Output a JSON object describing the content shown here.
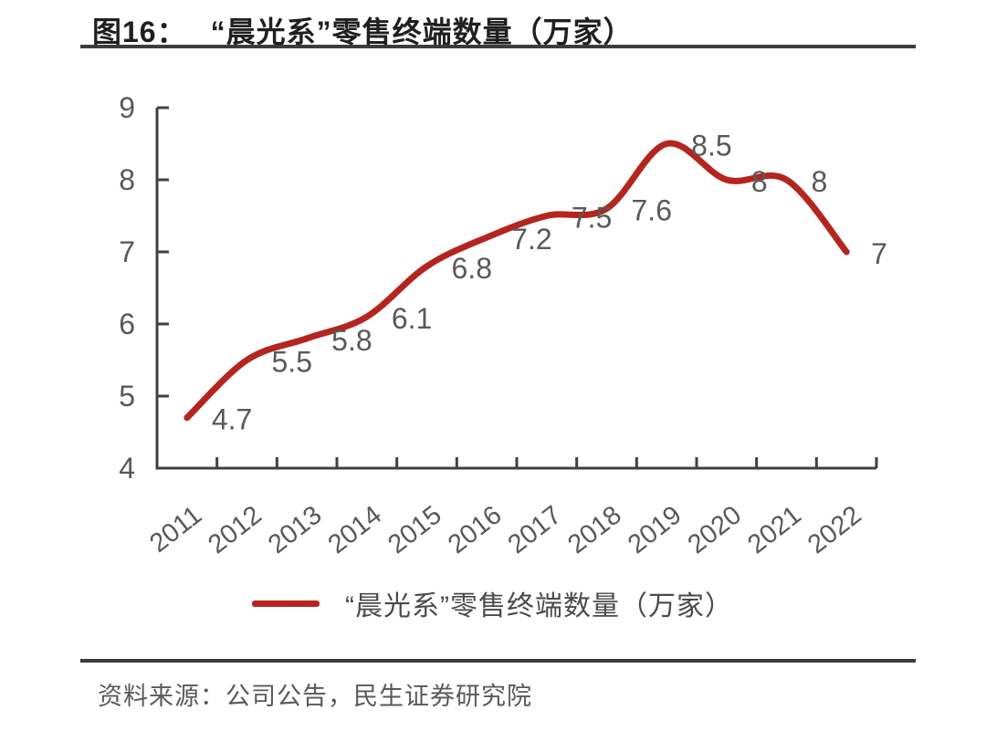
{
  "figure": {
    "number": "图16：",
    "title": "“晨光系”零售终端数量（万家）",
    "source": "资料来源：公司公告，民生证券研究院"
  },
  "legend": {
    "label": "“晨光系”零售终端数量（万家）"
  },
  "colors": {
    "line": "#b5251f",
    "axis": "#404040",
    "tick_label": "#595959",
    "data_label": "#595959",
    "title_text": "#1f1f1f",
    "rule": "#3c3c3c",
    "background": "#ffffff"
  },
  "chart_data": {
    "type": "line",
    "title": "图16：“晨光系”零售终端数量（万家）",
    "categories": [
      "2011",
      "2012",
      "2013",
      "2014",
      "2015",
      "2016",
      "2017",
      "2018",
      "2019",
      "2020",
      "2021",
      "2022"
    ],
    "values": [
      4.7,
      5.5,
      5.8,
      6.1,
      6.8,
      7.2,
      7.5,
      7.6,
      8.5,
      8,
      8,
      7
    ],
    "series_name": "“晨光系”零售终端数量（万家）",
    "xlabel": "",
    "ylabel": "",
    "ylim": [
      4,
      9
    ],
    "yticks": [
      4,
      5,
      6,
      7,
      8,
      9
    ],
    "grid": false,
    "smooth": true,
    "data_labels": true,
    "legend_position": "bottom"
  }
}
